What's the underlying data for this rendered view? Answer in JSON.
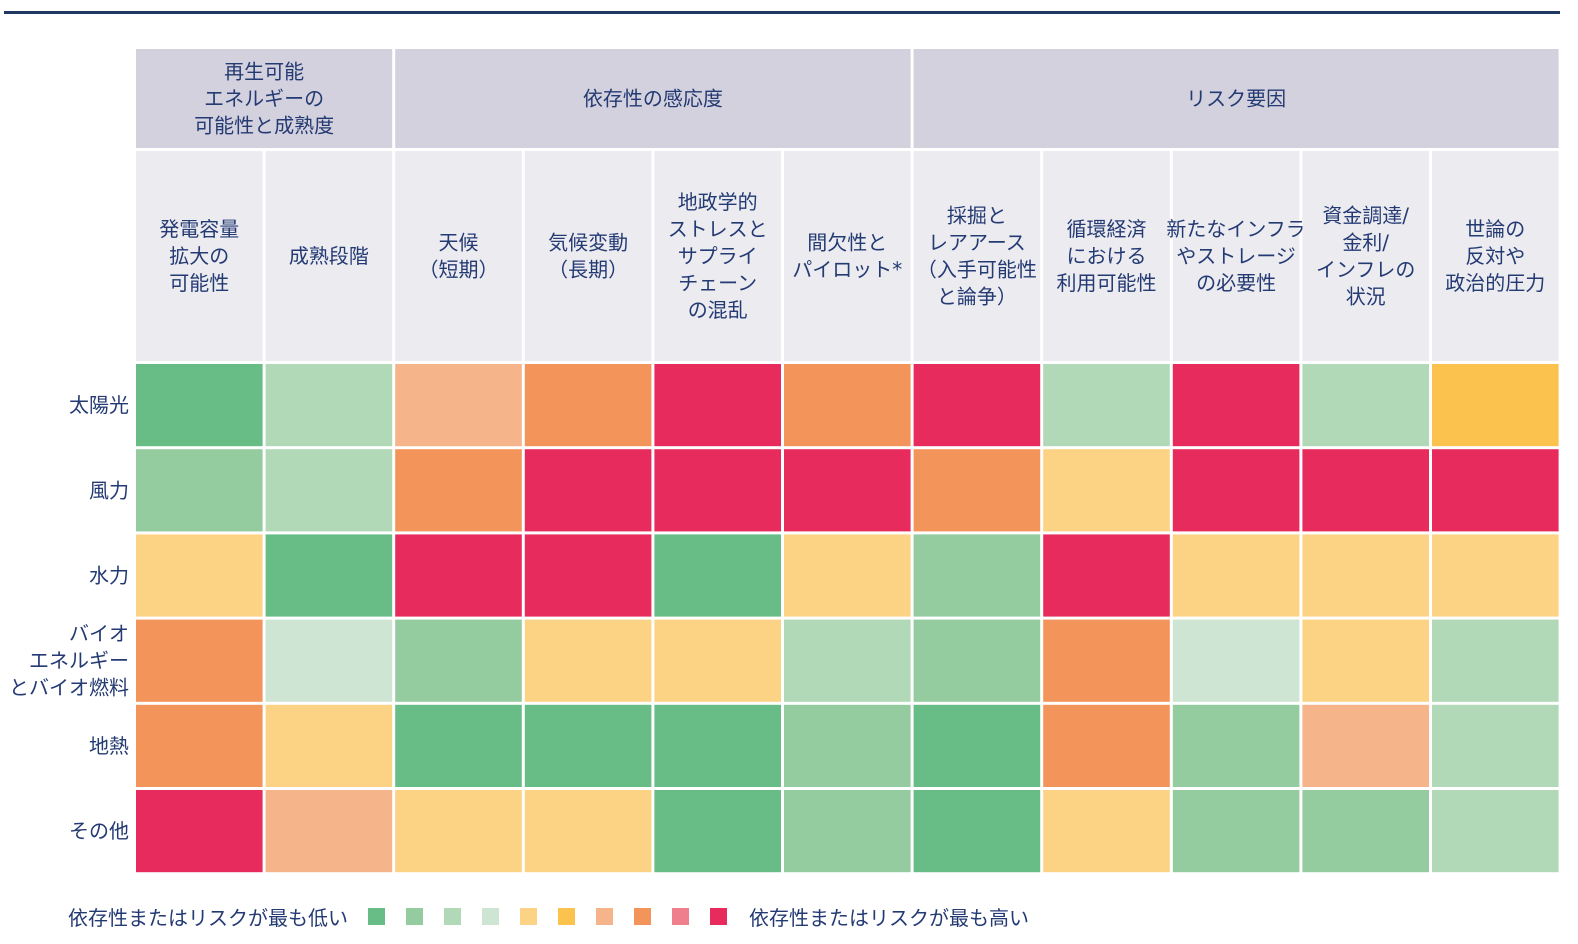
{
  "chart_data": {
    "type": "heatmap",
    "column_groups": [
      {
        "label": [
          "再生可能",
          "エネルギーの",
          "可能性と成熟度"
        ],
        "span": 2
      },
      {
        "label": [
          "依存性の感応度"
        ],
        "span": 4
      },
      {
        "label": [
          "リスク要因"
        ],
        "span": 5
      }
    ],
    "columns": [
      [
        "発電容量",
        "拡大の",
        "可能性"
      ],
      [
        "成熟段階"
      ],
      [
        "天候",
        "（短期）"
      ],
      [
        "気候変動",
        "（長期）"
      ],
      [
        "地政学的",
        "ストレスと",
        "サプライ",
        "チェーン",
        "の混乱"
      ],
      [
        "間欠性と",
        "パイロット*"
      ],
      [
        "採掘と",
        "レアアース",
        "（入手可能性",
        "と論争）"
      ],
      [
        "循環経済",
        "における",
        "利用可能性"
      ],
      [
        "新たなインフラ",
        "やストレージ",
        "の必要性"
      ],
      [
        "資金調達/",
        "金利/",
        "インフレの",
        "状況"
      ],
      [
        "世論の",
        "反対や",
        "政治的圧力"
      ]
    ],
    "rows": [
      {
        "label": [
          "太陽光"
        ],
        "levels": [
          1,
          3,
          7,
          8,
          10,
          8,
          10,
          3,
          10,
          3,
          6
        ]
      },
      {
        "label": [
          "風力"
        ],
        "levels": [
          2,
          3,
          8,
          10,
          10,
          10,
          8,
          5,
          10,
          10,
          10
        ]
      },
      {
        "label": [
          "水力"
        ],
        "levels": [
          5,
          1,
          10,
          10,
          1,
          5,
          2,
          10,
          5,
          5,
          5
        ]
      },
      {
        "label": [
          "バイオ",
          "エネルギー",
          "とバイオ燃料"
        ],
        "levels": [
          8,
          4,
          2,
          5,
          5,
          3,
          2,
          8,
          4,
          5,
          3
        ]
      },
      {
        "label": [
          "地熱"
        ],
        "levels": [
          8,
          5,
          1,
          1,
          1,
          2,
          1,
          8,
          2,
          7,
          3
        ]
      },
      {
        "label": [
          "その他"
        ],
        "levels": [
          10,
          7,
          5,
          5,
          1,
          2,
          1,
          5,
          2,
          2,
          3
        ]
      }
    ],
    "scale": {
      "colors": [
        "#68bc86",
        "#94cc9f",
        "#b1d8b7",
        "#cde5d2",
        "#fcd385",
        "#fcc24e",
        "#f5b48a",
        "#f3945a",
        "#ef7f8c",
        "#e72b5c"
      ],
      "low_label": "依存性またはリスクが最も低い",
      "high_label": "依存性またはリスクが最も高い"
    },
    "header_colors": {
      "group": "#d3d1dd",
      "column": "#ebebf0"
    }
  }
}
